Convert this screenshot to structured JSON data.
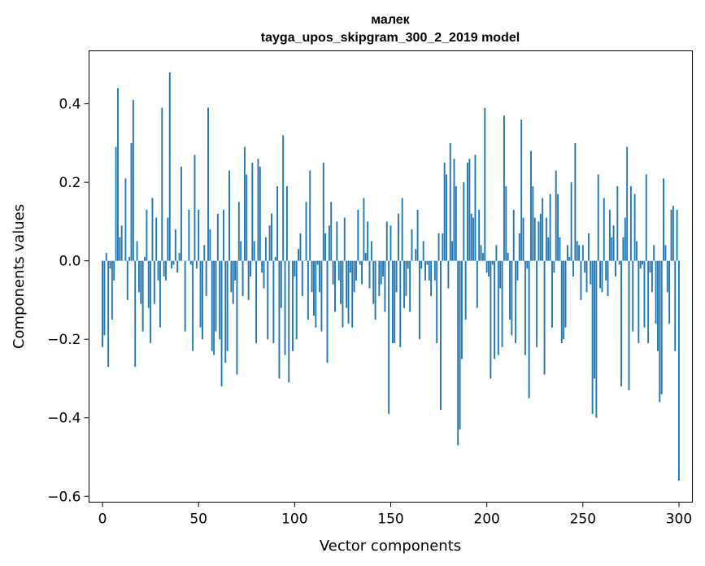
{
  "chart_data": {
    "type": "bar",
    "title": "малек",
    "subtitle": "tayga_upos_skipgram_300_2_2019 model",
    "xlabel": "Vector components",
    "ylabel": "Components values",
    "xlim": [
      -7,
      307
    ],
    "ylim": [
      -0.615,
      0.535
    ],
    "xticks": [
      0,
      50,
      100,
      150,
      200,
      250,
      300
    ],
    "yticks": [
      -0.6,
      -0.4,
      -0.2,
      0.0,
      0.2,
      0.4
    ],
    "ytick_labels": [
      "−0.6",
      "−0.4",
      "−0.2",
      "0.0",
      "0.2",
      "0.4"
    ],
    "bar_color": "#1f77b4",
    "grid": false,
    "values": [
      -0.22,
      -0.19,
      0.02,
      -0.27,
      -0.02,
      -0.15,
      -0.05,
      0.29,
      0.44,
      0.06,
      0.09,
      0.0,
      0.21,
      -0.1,
      0.01,
      0.3,
      0.41,
      -0.27,
      0.05,
      -0.08,
      -0.11,
      -0.18,
      0.01,
      0.13,
      -0.12,
      -0.21,
      0.16,
      -0.11,
      0.11,
      -0.05,
      -0.17,
      0.39,
      -0.04,
      -0.05,
      0.11,
      0.48,
      -0.02,
      -0.01,
      0.08,
      -0.03,
      0.02,
      0.24,
      0.0,
      -0.18,
      0.0,
      0.13,
      -0.01,
      -0.23,
      0.27,
      -0.02,
      0.13,
      -0.17,
      -0.2,
      0.04,
      -0.09,
      0.39,
      0.08,
      -0.23,
      -0.24,
      -0.18,
      0.12,
      -0.2,
      -0.32,
      0.13,
      -0.26,
      -0.23,
      0.23,
      -0.08,
      -0.11,
      -0.05,
      -0.29,
      0.15,
      0.05,
      -0.09,
      0.29,
      0.22,
      -0.1,
      -0.04,
      0.25,
      0.05,
      -0.21,
      0.26,
      0.24,
      -0.03,
      -0.07,
      0.06,
      -0.2,
      0.09,
      0.12,
      -0.21,
      0.01,
      0.19,
      -0.3,
      -0.12,
      0.32,
      -0.24,
      0.19,
      -0.31,
      0.0,
      -0.23,
      -0.04,
      -0.2,
      0.03,
      0.07,
      -0.09,
      0.0,
      0.15,
      -0.15,
      0.23,
      -0.08,
      -0.14,
      -0.17,
      -0.01,
      -0.08,
      -0.18,
      0.25,
      0.07,
      -0.26,
      0.09,
      0.15,
      -0.06,
      -0.13,
      0.1,
      -0.05,
      -0.11,
      -0.17,
      0.11,
      -0.12,
      -0.16,
      -0.03,
      -0.17,
      -0.08,
      -0.05,
      0.13,
      -0.01,
      -0.06,
      0.16,
      0.02,
      0.1,
      -0.07,
      0.05,
      -0.11,
      -0.15,
      0.0,
      -0.09,
      -0.06,
      -0.04,
      -0.13,
      0.1,
      -0.39,
      0.09,
      -0.21,
      -0.21,
      -0.08,
      0.12,
      -0.22,
      0.16,
      -0.12,
      -0.09,
      -0.02,
      -0.13,
      0.08,
      0.0,
      0.03,
      0.13,
      -0.2,
      -0.02,
      0.05,
      -0.05,
      -0.01,
      -0.05,
      -0.09,
      0.0,
      -0.05,
      -0.21,
      0.07,
      -0.38,
      0.07,
      0.25,
      0.22,
      -0.07,
      0.3,
      0.05,
      0.26,
      0.19,
      -0.47,
      -0.43,
      -0.25,
      0.2,
      -0.15,
      0.25,
      0.26,
      0.12,
      0.11,
      0.27,
      -0.12,
      0.13,
      0.04,
      0.02,
      0.39,
      -0.03,
      -0.04,
      -0.3,
      -0.01,
      -0.25,
      0.04,
      -0.24,
      -0.07,
      -0.22,
      0.37,
      0.19,
      0.02,
      -0.15,
      -0.19,
      0.13,
      -0.21,
      -0.05,
      0.07,
      0.36,
      0.11,
      -0.24,
      -0.02,
      -0.35,
      0.28,
      0.19,
      0.11,
      -0.22,
      0.1,
      0.12,
      0.16,
      -0.29,
      0.11,
      0.06,
      0.17,
      -0.17,
      -0.03,
      0.23,
      0.17,
      0.06,
      -0.21,
      -0.2,
      -0.17,
      0.04,
      0.01,
      0.2,
      -0.04,
      0.3,
      0.05,
      0.04,
      -0.1,
      0.04,
      -0.03,
      -0.08,
      0.07,
      -0.06,
      -0.39,
      -0.3,
      -0.4,
      0.22,
      -0.07,
      -0.08,
      0.16,
      -0.05,
      -0.09,
      0.13,
      0.06,
      0.09,
      -0.04,
      0.19,
      -0.01,
      -0.32,
      0.06,
      0.11,
      0.29,
      -0.33,
      0.19,
      -0.18,
      0.17,
      0.05,
      -0.21,
      -0.02,
      -0.01,
      -0.17,
      0.22,
      -0.21,
      -0.03,
      -0.08,
      0.04,
      -0.16,
      -0.23,
      -0.36,
      -0.34,
      0.21,
      0.04,
      -0.08,
      -0.16,
      0.13,
      0.14,
      -0.23,
      0.13,
      -0.56
    ]
  }
}
